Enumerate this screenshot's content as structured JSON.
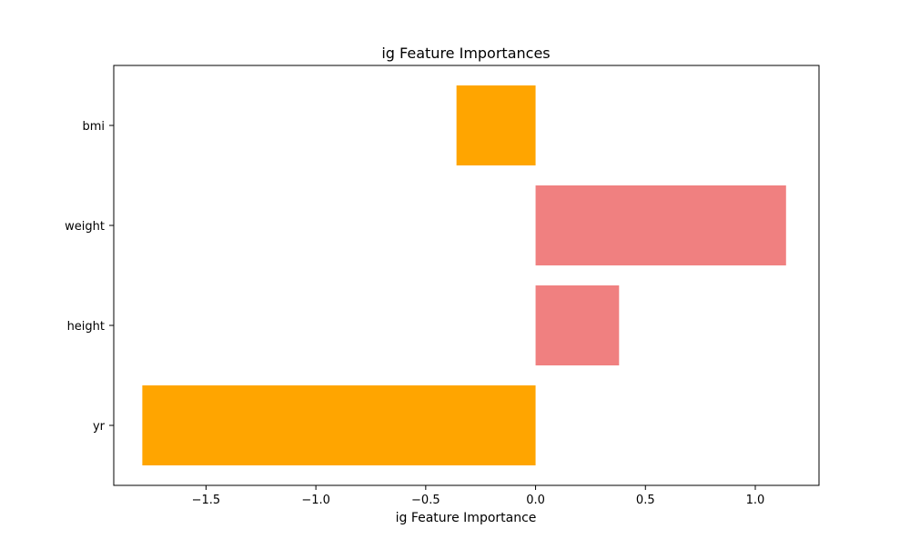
{
  "chart_data": {
    "type": "bar",
    "orientation": "horizontal",
    "title": "ig Feature Importances",
    "xlabel": "ig Feature Importance",
    "ylabel": "",
    "categories": [
      "yr",
      "height",
      "weight",
      "bmi"
    ],
    "values": [
      -1.79,
      0.38,
      1.14,
      -0.36
    ],
    "bar_colors": [
      "#ffa500",
      "#f08080",
      "#f08080",
      "#ffa500"
    ],
    "xlim": [
      -1.92,
      1.29
    ],
    "xticks": [
      -1.5,
      -1.0,
      -0.5,
      0.0,
      0.5,
      1.0
    ],
    "xtick_labels": [
      "−1.5",
      "−1.0",
      "−0.5",
      "0.0",
      "0.5",
      "1.0"
    ],
    "grid": false,
    "legend": false
  }
}
